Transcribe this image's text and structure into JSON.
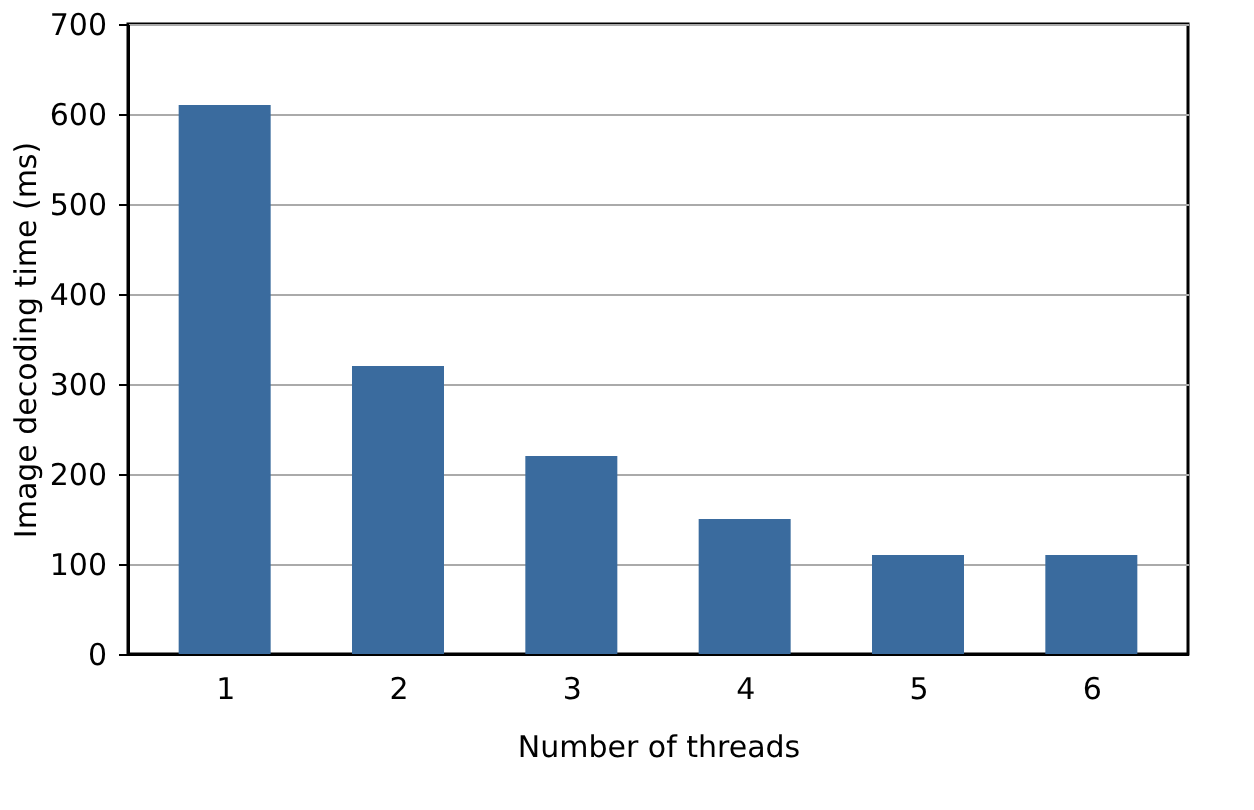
{
  "chart_data": {
    "type": "bar",
    "xlabel": "Number of threads",
    "ylabel": "Image decoding time (ms)",
    "categories": [
      "1",
      "2",
      "3",
      "4",
      "5",
      "6"
    ],
    "values": [
      610,
      320,
      220,
      150,
      110,
      110
    ],
    "color": "#3a6b9e",
    "ylim": [
      0,
      700
    ],
    "yticks": [
      0,
      100,
      200,
      300,
      400,
      500,
      600,
      700
    ],
    "grid": "y"
  }
}
